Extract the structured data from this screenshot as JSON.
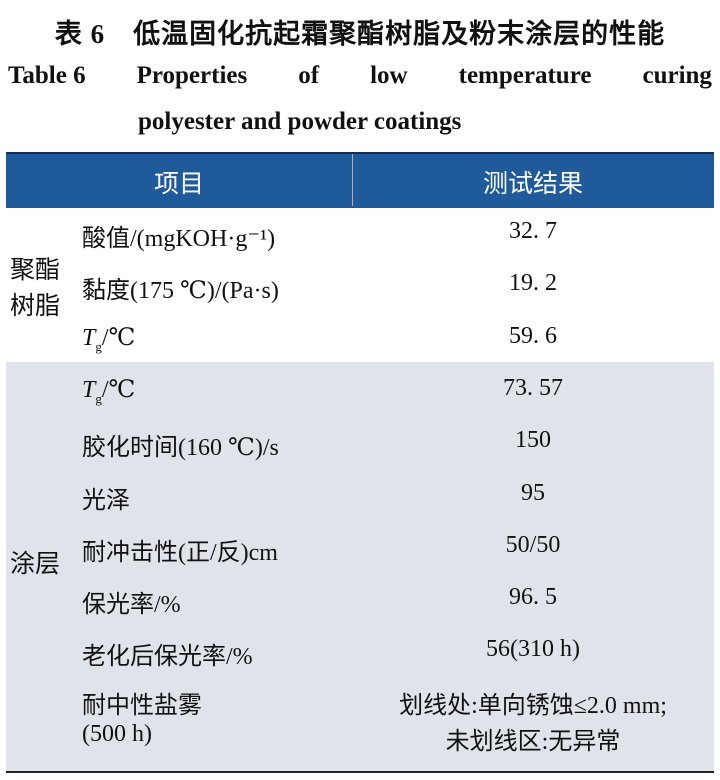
{
  "header": {
    "title_cn": "表 6　低温固化抗起霜聚酯树脂及粉末涂层的性能",
    "title_en_line1": [
      "Table 6",
      "Properties",
      "of",
      "low",
      "temperature",
      "curing"
    ],
    "title_en_line2": "polyester and powder coatings"
  },
  "table": {
    "columns": [
      "项目",
      "测试结果"
    ],
    "groups": [
      {
        "label": [
          "聚酯",
          "树脂"
        ],
        "rows": [
          {
            "item": "酸值/(mgKOH·g⁻¹)",
            "value": "32. 7"
          },
          {
            "item": "黏度(175 ℃)/(Pa·s)",
            "value": "19. 2"
          },
          {
            "item": {
              "main": "T",
              "sub": "g",
              "tail": "/℃"
            },
            "value": "59. 6"
          }
        ]
      },
      {
        "label": [
          "涂层"
        ],
        "rows": [
          {
            "item": {
              "main": "T",
              "sub": "g",
              "tail": "/℃"
            },
            "value": "73. 57"
          },
          {
            "item": "胶化时间(160 ℃)/s",
            "value": "150"
          },
          {
            "item": "光泽",
            "value": "95"
          },
          {
            "item": "耐冲击性(正/反)cm",
            "value": "50/50"
          },
          {
            "item": "保光率/%",
            "value": "96. 5"
          },
          {
            "item": "老化后保光率/%",
            "value": "56(310 h)"
          },
          {
            "item": [
              "耐中性盐雾",
              "(500 h)"
            ],
            "value": [
              "划线处:单向锈蚀≤2.0 mm;",
              "未划线区:无异常"
            ]
          }
        ]
      }
    ]
  }
}
